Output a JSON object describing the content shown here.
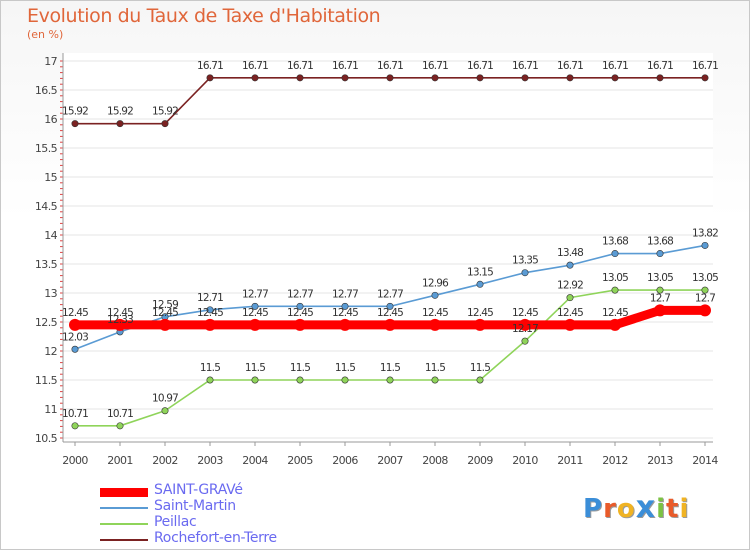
{
  "header": {
    "title": "Evolution du Taux de Taxe d'Habitation",
    "subtitle": "(en %)"
  },
  "logo": {
    "text": "ProXiti",
    "letters": [
      "P",
      "r",
      "o",
      "x",
      "i",
      "t",
      "i"
    ],
    "colors": [
      "#3b8ed8",
      "#e95b2a",
      "#f0b323",
      "#3b8ed8",
      "#7cc243",
      "#e95b2a",
      "#f0b323"
    ]
  },
  "chart_data": {
    "type": "line",
    "x": [
      2000,
      2001,
      2002,
      2003,
      2004,
      2005,
      2006,
      2007,
      2008,
      2009,
      2010,
      2011,
      2012,
      2013,
      2014
    ],
    "ylim": [
      10.5,
      17
    ],
    "yticks": [
      10.5,
      11,
      11.5,
      12,
      12.5,
      13,
      13.5,
      14,
      14.5,
      15,
      15.5,
      16,
      16.5,
      17
    ],
    "grid": "horizontal",
    "legend_position": "bottom-left",
    "series": [
      {
        "name": "SAINT-GRAVé",
        "color": "#ff0000",
        "values": [
          12.45,
          12.45,
          12.45,
          12.45,
          12.45,
          12.45,
          12.45,
          12.45,
          12.45,
          12.45,
          12.45,
          12.45,
          12.45,
          12.7,
          12.7
        ],
        "labels": [
          "12.45",
          "12.45",
          "12.45",
          "12.45",
          "12.45",
          "12.45",
          "12.45",
          "12.45",
          "12.45",
          "12.45",
          "12.45",
          "12.45",
          "12.45",
          "12.7",
          "12.7"
        ]
      },
      {
        "name": "Saint-Martin",
        "color": "#5a9bd4",
        "values": [
          12.03,
          12.33,
          12.59,
          12.71,
          12.77,
          12.77,
          12.77,
          12.77,
          12.96,
          13.15,
          13.35,
          13.48,
          13.68,
          13.68,
          13.82
        ],
        "labels": [
          "12.03",
          "12.33",
          "12.59",
          "12.71",
          "12.77",
          "12.77",
          "12.77",
          "12.77",
          "12.96",
          "13.15",
          "13.35",
          "13.48",
          "13.68",
          "13.68",
          "13.82"
        ]
      },
      {
        "name": "Peillac",
        "color": "#8fd45a",
        "values": [
          10.71,
          10.71,
          10.97,
          11.5,
          11.5,
          11.5,
          11.5,
          11.5,
          11.5,
          11.5,
          12.17,
          12.92,
          13.05,
          13.05,
          13.05
        ],
        "labels": [
          "10.71",
          "10.71",
          "10.97",
          "11.5",
          "11.5",
          "11.5",
          "11.5",
          "11.5",
          "11.5",
          "11.5",
          "12.17",
          "12.92",
          "13.05",
          "13.05",
          "13.05"
        ]
      },
      {
        "name": "Rochefort-en-Terre",
        "color": "#7b2222",
        "values": [
          15.92,
          15.92,
          15.92,
          16.71,
          16.71,
          16.71,
          16.71,
          16.71,
          16.71,
          16.71,
          16.71,
          16.71,
          16.71,
          16.71,
          16.71
        ],
        "labels": [
          "15.92",
          "15.92",
          "15.92",
          "16.71",
          "16.71",
          "16.71",
          "16.71",
          "16.71",
          "16.71",
          "16.71",
          "16.71",
          "16.71",
          "16.71",
          "16.71",
          "16.71"
        ]
      }
    ]
  }
}
